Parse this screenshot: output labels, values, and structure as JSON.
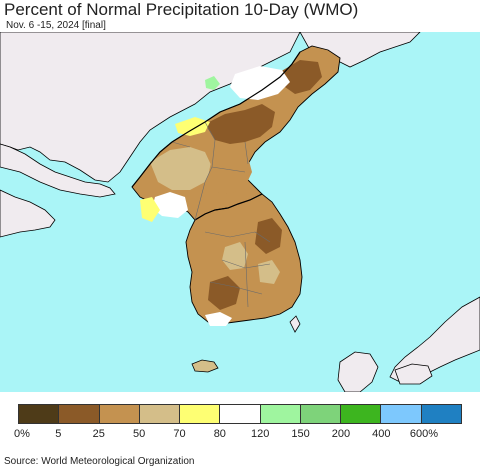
{
  "title": "Percent of Normal Precipitation 10-Day (WMO)",
  "subtitle": "Nov. 6 -15, 2024 [final]",
  "source": "Source: World Meteorological Organization",
  "colors": {
    "sea": "#aaf5f7",
    "land_neighbor": "#f0ebef",
    "border": "#6b6b6b",
    "coast": "#000000"
  },
  "legend": {
    "swatches": [
      {
        "color": "#4e3b18"
      },
      {
        "color": "#8b5a28"
      },
      {
        "color": "#c49250"
      },
      {
        "color": "#d4be89"
      },
      {
        "color": "#feff73"
      },
      {
        "color": "#ffffff"
      },
      {
        "color": "#9ff59f"
      },
      {
        "color": "#7ed37a"
      },
      {
        "color": "#3db51f"
      },
      {
        "color": "#7dc8fd"
      },
      {
        "color": "#1f80c2"
      }
    ],
    "labels": [
      "0%",
      "5",
      "25",
      "50",
      "70",
      "80",
      "120",
      "150",
      "200",
      "400",
      "600%"
    ]
  }
}
